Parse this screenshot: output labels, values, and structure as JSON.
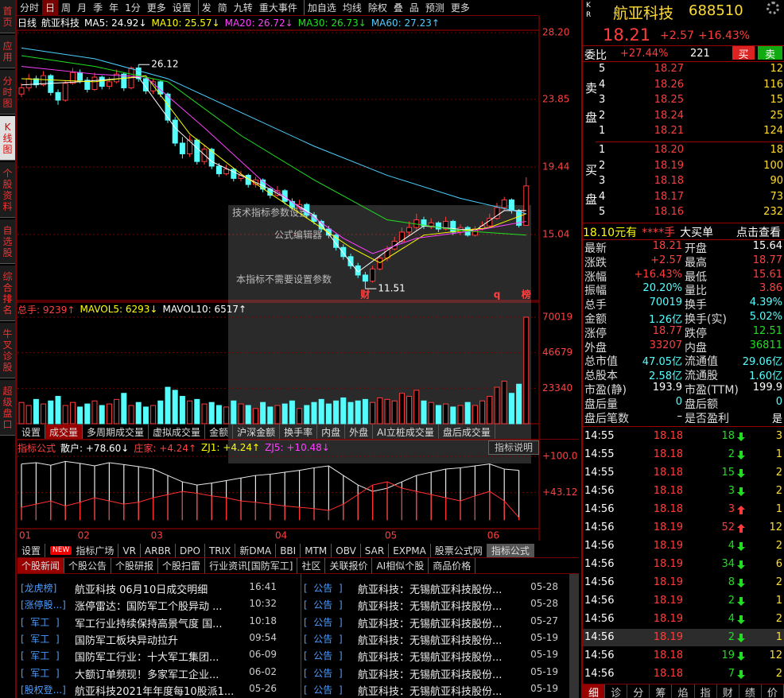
{
  "sidebar": {
    "items": [
      "首页",
      "应用",
      "分时图",
      "K线图",
      "个股资料",
      "自选股",
      "综合排名",
      "牛叉诊股",
      "超级盘口"
    ],
    "active": 3
  },
  "toolbar": {
    "groups": [
      [
        "分时",
        "日",
        "周",
        "月",
        "季",
        "年",
        "1分",
        "更多",
        "设置"
      ],
      [
        "发",
        "简",
        "九转",
        "重大事件"
      ],
      [
        "加自选",
        "均线",
        "除权",
        "叠",
        "品",
        "预测",
        "更多"
      ]
    ],
    "active": [
      0,
      1
    ]
  },
  "chart_header": [
    "日线",
    "航亚科技"
  ],
  "kline": {
    "type": "candlestick",
    "ylim": [
      10.74,
      28.36
    ],
    "yticks": [
      {
        "value": 28.2,
        "label": "28.20"
      },
      23.85,
      19.44,
      15.04
    ],
    "up_color": "#ff3c3c",
    "down_color": "#54fcfc",
    "grid": true,
    "candles": [
      [
        24.2,
        24.6,
        24.9,
        24.0
      ],
      [
        24.6,
        25.2,
        25.5,
        24.4
      ],
      [
        25.2,
        24.8,
        25.4,
        24.6
      ],
      [
        24.8,
        25.4,
        25.7,
        24.7
      ],
      [
        25.4,
        24.3,
        25.5,
        24.1
      ],
      [
        24.3,
        23.8,
        24.5,
        23.5
      ],
      [
        23.8,
        24.9,
        25.1,
        23.7
      ],
      [
        24.9,
        25.6,
        25.9,
        24.8
      ],
      [
        25.6,
        25.1,
        25.8,
        24.9
      ],
      [
        25.1,
        24.5,
        25.3,
        24.3
      ],
      [
        24.5,
        25.3,
        25.6,
        24.4
      ],
      [
        25.3,
        24.7,
        25.4,
        24.5
      ],
      [
        24.7,
        25.0,
        25.3,
        24.5
      ],
      [
        25.0,
        25.5,
        25.8,
        24.9
      ],
      [
        25.5,
        24.6,
        25.6,
        24.4
      ],
      [
        24.6,
        25.9,
        26.0,
        24.5
      ],
      [
        25.9,
        25.2,
        26.12,
        25.0
      ],
      [
        25.2,
        24.4,
        25.3,
        24.2
      ],
      [
        24.4,
        25.0,
        25.2,
        24.2
      ],
      [
        25.0,
        24.2,
        25.1,
        24.0
      ],
      [
        24.2,
        22.5,
        24.3,
        22.3
      ],
      [
        22.5,
        21.0,
        22.7,
        20.8
      ],
      [
        21.0,
        20.3,
        21.4,
        20.0
      ],
      [
        20.3,
        21.2,
        21.5,
        20.1
      ],
      [
        21.2,
        19.8,
        21.3,
        19.6
      ],
      [
        19.8,
        20.6,
        20.9,
        19.6
      ],
      [
        20.6,
        19.5,
        20.7,
        19.3
      ],
      [
        19.5,
        19.0,
        19.7,
        18.8
      ],
      [
        19.0,
        19.3,
        19.6,
        18.9
      ],
      [
        19.3,
        18.7,
        19.4,
        18.5
      ],
      [
        18.7,
        18.9,
        19.2,
        18.5
      ],
      [
        18.9,
        18.3,
        19.0,
        18.1
      ],
      [
        18.3,
        18.6,
        18.8,
        18.1
      ],
      [
        18.6,
        18.0,
        18.7,
        17.8
      ],
      [
        18.0,
        17.6,
        18.1,
        17.4
      ],
      [
        17.6,
        17.9,
        18.2,
        17.5
      ],
      [
        17.9,
        17.2,
        18.0,
        17.0
      ],
      [
        17.2,
        16.8,
        17.4,
        16.6
      ],
      [
        16.8,
        17.0,
        17.3,
        16.7
      ],
      [
        17.0,
        16.3,
        17.1,
        16.1
      ],
      [
        16.3,
        15.9,
        16.5,
        15.7
      ],
      [
        15.9,
        15.4,
        16.0,
        15.2
      ],
      [
        15.4,
        15.0,
        15.6,
        14.8
      ],
      [
        15.0,
        14.2,
        15.1,
        14.0
      ],
      [
        14.2,
        13.6,
        14.4,
        13.4
      ],
      [
        13.6,
        13.0,
        13.8,
        12.8
      ],
      [
        13.0,
        12.4,
        13.2,
        12.2
      ],
      [
        12.4,
        12.0,
        12.6,
        11.51
      ],
      [
        12.0,
        12.8,
        13.0,
        11.9
      ],
      [
        12.8,
        13.5,
        13.7,
        12.7
      ],
      [
        13.5,
        14.1,
        14.3,
        13.3
      ],
      [
        14.1,
        14.6,
        14.9,
        14.0
      ],
      [
        14.6,
        15.2,
        15.5,
        14.5
      ],
      [
        15.2,
        15.5,
        15.9,
        15.0
      ],
      [
        15.5,
        16.0,
        16.4,
        15.3
      ],
      [
        16.0,
        15.6,
        16.2,
        15.4
      ],
      [
        15.6,
        15.8,
        16.1,
        15.4
      ],
      [
        15.8,
        15.4,
        15.9,
        15.2
      ],
      [
        15.4,
        15.9,
        16.2,
        15.3
      ],
      [
        15.9,
        15.2,
        16.0,
        15.0
      ],
      [
        15.2,
        15.5,
        15.7,
        15.0
      ],
      [
        15.5,
        15.0,
        15.6,
        14.9
      ],
      [
        15.0,
        15.4,
        15.6,
        14.9
      ],
      [
        15.4,
        15.6,
        15.9,
        15.3
      ],
      [
        15.6,
        16.1,
        16.4,
        15.5
      ],
      [
        16.1,
        16.8,
        17.1,
        16.0
      ],
      [
        16.8,
        17.3,
        17.5,
        16.6
      ],
      [
        17.3,
        16.6,
        17.4,
        16.4
      ],
      [
        16.6,
        15.64,
        16.7,
        15.5
      ],
      [
        15.64,
        18.21,
        18.77,
        15.61
      ]
    ],
    "ma": [
      {
        "label": "MA5: 24.92↓",
        "color": "#ffffff",
        "x": [
          0,
          8,
          16,
          21,
          26,
          34,
          40,
          46,
          50,
          55,
          62,
          66,
          69
        ],
        "values": [
          24.8,
          25.0,
          25.3,
          22.0,
          19.8,
          18.0,
          16.3,
          12.6,
          14.0,
          15.6,
          15.3,
          16.6,
          16.6
        ]
      },
      {
        "label": "MA10: 25.57↓",
        "color": "#ffff00",
        "x": [
          0,
          10,
          17,
          23,
          30,
          45,
          49,
          55,
          64,
          69
        ],
        "values": [
          25.2,
          25.0,
          25.4,
          21.6,
          19.0,
          14.2,
          13.2,
          15.0,
          15.5,
          16.4
        ]
      },
      {
        "label": "MA20: 26.72↓",
        "color": "#ff40ff",
        "x": [
          0,
          10,
          17,
          25,
          33,
          44,
          48,
          54,
          62,
          69
        ],
        "values": [
          26.0,
          25.5,
          25.3,
          22.0,
          18.5,
          14.8,
          13.8,
          14.8,
          15.3,
          15.9
        ]
      },
      {
        "label": "MA30: 26.73↓",
        "color": "#20e020",
        "x": [
          0,
          10,
          20,
          30,
          40,
          50,
          60,
          69
        ],
        "values": [
          26.7,
          26.0,
          25.0,
          21.5,
          18.6,
          16.0,
          15.3,
          15.0
        ]
      },
      {
        "label": "MA60: 27.23↑",
        "color": "#4ccfff",
        "x": [
          0,
          10,
          20,
          30,
          40,
          50,
          60,
          69
        ],
        "values": [
          27.2,
          26.5,
          25.2,
          23.0,
          20.8,
          18.9,
          17.4,
          16.4
        ]
      }
    ],
    "markers": [
      {
        "text": "财",
        "index": 47
      },
      {
        "text": "q",
        "index": 65
      },
      {
        "text": "榜",
        "index": 69
      }
    ]
  },
  "dialog": [
    "技术指标参数设置",
    "公式编辑器",
    "本指标不需要设置参数"
  ],
  "volume": {
    "header": [
      {
        "text": "总手: 9239↑",
        "color": "#ff4040"
      },
      {
        "text": "MAVOL5: 6293↓",
        "color": "#ffff00"
      },
      {
        "text": "MAVOL10: 6517↑",
        "color": "#ffffff"
      }
    ],
    "ylim": [
      0,
      71060
    ],
    "yticks": [
      70019,
      46679,
      23340
    ],
    "values": [
      14000,
      12000,
      16000,
      13000,
      15000,
      18000,
      12000,
      14000,
      11000,
      13000,
      15000,
      12000,
      13000,
      16000,
      20000,
      12000,
      14000,
      11000,
      12000,
      15000,
      24000,
      22000,
      18000,
      15000,
      16000,
      13000,
      14000,
      12000,
      11000,
      15000,
      13000,
      12000,
      10000,
      14000,
      11000,
      12000,
      13000,
      15000,
      10000,
      12000,
      14000,
      16000,
      13000,
      15000,
      17000,
      14000,
      15000,
      16000,
      14000,
      17000,
      16000,
      15000,
      20000,
      18000,
      22000,
      15000,
      14000,
      12000,
      13000,
      11000,
      12000,
      14000,
      12000,
      15000,
      18000,
      24000,
      28000,
      20000,
      26000,
      70019
    ]
  },
  "volume_tabs": {
    "items": [
      "设置",
      "成交量",
      "多周期成交量",
      "虚拟成交量",
      "金额",
      "沪深金额",
      "换手率",
      "内盘",
      "外盘",
      "AI立桩成交量",
      "盘后成交量"
    ],
    "active": 1
  },
  "indicator": {
    "header": [
      {
        "text": "指标公式",
        "color": "#ff4040"
      },
      {
        "text": "散户: +78.60↓",
        "color": "#ffffff"
      },
      {
        "text": "庄家: +4.24↑",
        "color": "#ff4040"
      },
      {
        "text": "ZJ1: +4.24↑",
        "color": "#ffff00"
      },
      {
        "text": "ZJ5: +10.48↓",
        "color": "#ff40ff"
      }
    ],
    "button": "指标说明",
    "ylim": [
      -13.5,
      105
    ],
    "yticks": [
      {
        "value": 100,
        "label": "+100.0"
      },
      {
        "value": 43.12,
        "label": "+43.12"
      }
    ],
    "series": [
      {
        "color": "#e8e8e8",
        "values": [
          88,
          90,
          86,
          92,
          89,
          85,
          90,
          87,
          84,
          80,
          70,
          60,
          55,
          58,
          62,
          66,
          70,
          72,
          75,
          78,
          82,
          85,
          70,
          55,
          45,
          50,
          60,
          70,
          75,
          80,
          82,
          85,
          88,
          80,
          78
        ]
      },
      {
        "color": "#ff3030",
        "values": [
          20,
          25,
          30,
          22,
          28,
          35,
          30,
          25,
          28,
          35,
          40,
          45,
          42,
          38,
          35,
          30,
          28,
          25,
          22,
          20,
          18,
          15,
          25,
          40,
          55,
          60,
          50,
          45,
          40,
          35,
          30,
          38,
          45,
          30,
          4
        ]
      }
    ],
    "step": 2
  },
  "months": {
    "labels": [
      "01",
      "02",
      "03",
      "04",
      "05",
      "06"
    ],
    "index": [
      0,
      8,
      18,
      35,
      50,
      64
    ]
  },
  "indicator_tabs": {
    "items": [
      "设置",
      "NEW",
      "指标广场",
      "VR",
      "ARBR",
      "DPO",
      "TRIX",
      "新DMA",
      "BBI",
      "MTM",
      "OBV",
      "SAR",
      "EXPMA",
      "股票公式网",
      "指标公式"
    ],
    "active": 14,
    "badge": 1
  },
  "news_tabs": {
    "items": [
      "个股新闻",
      "个股公告",
      "个股研报",
      "个股扫雷",
      "行业资讯[国防军工]",
      "社区",
      "关联报价",
      "AI相似个股",
      "商品价格"
    ],
    "active": 0
  },
  "news_left": [
    [
      "[龙虎榜]",
      "航亚科技 06月10日成交明细",
      "16:41"
    ],
    [
      "[涨停股...]",
      "涨停雷达：国防军工个股异动 ...",
      "10:32"
    ],
    [
      "[  军工  ]",
      "军工行业持续保持高景气度 国...",
      "10:18"
    ],
    [
      "[  军工  ]",
      "国防军工板块异动拉升",
      "09:54"
    ],
    [
      "[  军工  ]",
      "国防军工行业：十大军工集团...",
      "06-09"
    ],
    [
      "[  军工  ]",
      "大额订单频现！多家军工企业...",
      "06-02"
    ],
    [
      "[股权登...]",
      "航亚科技2021年年度每10股派1...",
      "05-26"
    ]
  ],
  "news_right": [
    [
      "[  公告  ]",
      "航亚科技：无锡航亚科技股份...",
      "05-28"
    ],
    [
      "[  公告  ]",
      "航亚科技：无锡航亚科技股份...",
      "05-28"
    ],
    [
      "[  公告  ]",
      "航亚科技：无锡航亚科技股份...",
      "05-27"
    ],
    [
      "[  公告  ]",
      "航亚科技：无锡航亚科技股份...",
      "05-19"
    ],
    [
      "[  公告  ]",
      "航亚科技：无锡航亚科技股份...",
      "05-19"
    ],
    [
      "[  公告  ]",
      "航亚科技：无锡航亚科技股份...",
      "05-19"
    ],
    [
      "[  公告  ]",
      "航亚科技：无锡航亚科技股份...",
      "05-19"
    ]
  ],
  "quote": {
    "kr": [
      "K",
      "R"
    ],
    "name": "航亚科技",
    "code": "688510",
    "price": "18.21",
    "change": "+2.57",
    "pct": "+16.43%",
    "wb_label": "委比",
    "wb": "+27.44%",
    "wc": "221",
    "buy": "买",
    "sell": "卖",
    "ask_label": [
      "卖",
      "盘"
    ],
    "bid_label": [
      "买",
      "盘"
    ],
    "asks": [
      [
        "5",
        "18.27",
        "12"
      ],
      [
        "4",
        "18.26",
        "116"
      ],
      [
        "3",
        "18.25",
        "15"
      ],
      [
        "2",
        "18.24",
        "25"
      ],
      [
        "1",
        "18.21",
        "124"
      ]
    ],
    "bids": [
      [
        "1",
        "18.20",
        "18"
      ],
      [
        "2",
        "18.19",
        "100"
      ],
      [
        "3",
        "18.18",
        "90"
      ],
      [
        "4",
        "18.17",
        "73"
      ],
      [
        "5",
        "18.16",
        "232"
      ]
    ],
    "big": [
      {
        "t": "18.10元有",
        "c": "#ffff00"
      },
      {
        "t": "****手",
        "c": "#ff4040"
      },
      {
        "t": "大买单",
        "c": "#ffffff"
      },
      {
        "t": "点击查看",
        "c": "#ffffff"
      }
    ],
    "stats": [
      {
        "l": "最新",
        "v": "18.21",
        "c": "#ff4040",
        "l2": "开盘",
        "v2": "15.64",
        "c2": "#ffffff"
      },
      {
        "l": "涨跌",
        "v": "+2.57",
        "c": "#ff4040",
        "l2": "最高",
        "v2": "18.77",
        "c2": "#ff4040"
      },
      {
        "l": "涨幅",
        "v": "+16.43%",
        "c": "#ff4040",
        "l2": "最低",
        "v2": "15.61",
        "c2": "#ff4040"
      },
      {
        "l": "振幅",
        "v": "20.20%",
        "c": "#5ff",
        "l2": "量比",
        "v2": "3.86",
        "c2": "#ff4040"
      },
      {
        "l": "总手",
        "v": "70019",
        "c": "#5ff",
        "l2": "换手",
        "v2": "4.39%",
        "c2": "#5ff"
      },
      {
        "l": "金额",
        "v": "1.26亿",
        "c": "#5ff",
        "l2": "换手(实)",
        "v2": "5.02%",
        "c2": "#5ff"
      },
      {
        "l": "涨停",
        "v": "18.77",
        "c": "#ff4040",
        "l2": "跌停",
        "v2": "12.51",
        "c2": "#22dd22"
      },
      {
        "l": "外盘",
        "v": "33207",
        "c": "#ff4040",
        "l2": "内盘",
        "v2": "36811",
        "c2": "#22dd22"
      },
      {
        "l": "总市值",
        "v": "47.05亿",
        "c": "#5ff",
        "l2": "流通值",
        "v2": "29.06亿",
        "c2": "#5ff"
      },
      {
        "l": "总股本",
        "v": "2.58亿",
        "c": "#5ff",
        "l2": "流通股",
        "v2": "1.60亿",
        "c2": "#5ff"
      },
      {
        "l": "市盈(静)",
        "v": "193.9",
        "c": "#ffffff",
        "l2": "市盈(TTM)",
        "v2": "199.9",
        "c2": "#ffffff"
      },
      {
        "l": "盘后量",
        "v": "0",
        "c": "#5ff",
        "l2": "盘后额",
        "v2": "0",
        "c2": "#5ff"
      },
      {
        "l": "盘后笔数",
        "v": "–",
        "c": "#ffffff",
        "l2": "是否盈利",
        "v2": "是",
        "c2": "#ffffff"
      }
    ],
    "ticks": [
      {
        "t": "14:55",
        "p": "18.18",
        "v": "18",
        "dir": "down",
        "n": "3"
      },
      {
        "t": "14:55",
        "p": "18.18",
        "v": "2",
        "dir": "down",
        "n": "1"
      },
      {
        "t": "14:55",
        "p": "18.18",
        "v": "15",
        "dir": "down",
        "n": "2"
      },
      {
        "t": "14:56",
        "p": "18.18",
        "v": "3",
        "dir": "down",
        "n": "2"
      },
      {
        "t": "14:56",
        "p": "18.18",
        "v": "3",
        "dir": "up",
        "n": "1"
      },
      {
        "t": "14:56",
        "p": "18.19",
        "v": "52",
        "dir": "up",
        "n": "12"
      },
      {
        "t": "14:56",
        "p": "18.19",
        "v": "4",
        "dir": "down",
        "n": "2"
      },
      {
        "t": "14:56",
        "p": "18.19",
        "v": "34",
        "dir": "down",
        "n": "6"
      },
      {
        "t": "14:56",
        "p": "18.19",
        "v": "8",
        "dir": "down",
        "n": "2"
      },
      {
        "t": "14:56",
        "p": "18.19",
        "v": "2",
        "dir": "down",
        "n": "1"
      },
      {
        "t": "14:56",
        "p": "18.19",
        "v": "4",
        "dir": "down",
        "n": "2"
      },
      {
        "t": "14:56",
        "p": "18.19",
        "v": "2",
        "dir": "down",
        "n": "1"
      },
      {
        "t": "14:56",
        "p": "18.18",
        "v": "19",
        "dir": "down",
        "n": "12"
      },
      {
        "t": "14:56",
        "p": "18.18",
        "v": "7",
        "dir": "down",
        "n": "2"
      }
    ],
    "highlight": 11,
    "tabs": [
      "细",
      "诊",
      "分",
      "筹",
      "焰",
      "指",
      "财",
      "绩",
      "价"
    ],
    "active_tab": 0
  }
}
